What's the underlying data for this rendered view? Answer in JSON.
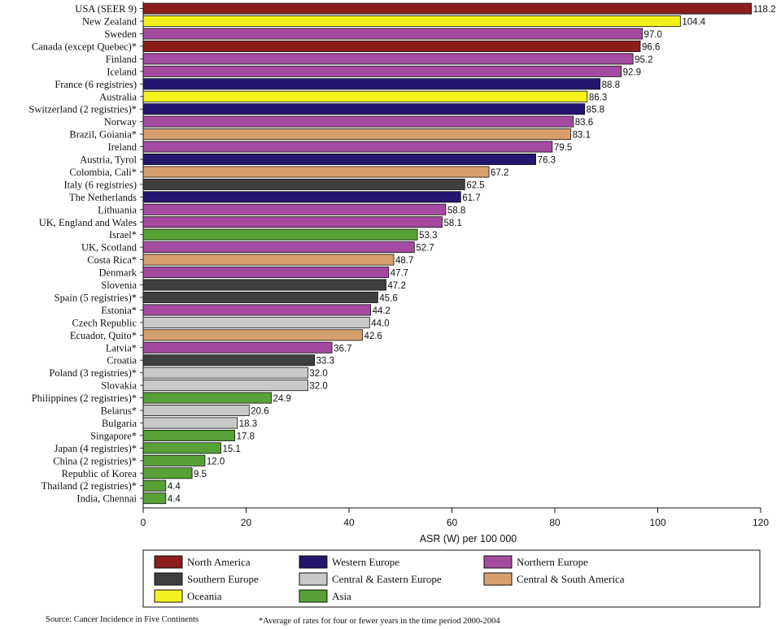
{
  "chart_data": {
    "type": "bar",
    "orientation": "horizontal",
    "categories": [
      "USA (SEER 9)",
      "New Zealand",
      "Sweden",
      "Canada (except Quebec)*",
      "Finland",
      "Iceland",
      "France (6 registries)",
      "Australia",
      "Switzerland (2 registries)*",
      "Norway",
      "Brazil, Goiania*",
      "Ireland",
      "Austria, Tyrol",
      "Colombia, Cali*",
      "Italy (6 registries)",
      "The Netherlands",
      "Lithuania",
      "UK, England and Wales",
      "Israel*",
      "UK, Scotland",
      "Costa Rica*",
      "Denmark",
      "Slovenia",
      "Spain (5 registries)*",
      "Estonia*",
      "Czech Republic",
      "Ecuador, Quito*",
      "Latvia*",
      "Croatia",
      "Poland (3 registries)*",
      "Slovakia",
      "Philippines (2 registries)*",
      "Belarus*",
      "Bulgaria",
      "Singapore*",
      "Japan (4 registries)*",
      "China (2 registries)*",
      "Republic of Korea",
      "Thailand (2 registries)*",
      "India, Chennai"
    ],
    "values": [
      118.2,
      104.4,
      97.0,
      96.6,
      95.2,
      92.9,
      88.8,
      86.3,
      85.8,
      83.6,
      83.1,
      79.5,
      76.3,
      67.2,
      62.5,
      61.7,
      58.8,
      58.1,
      53.3,
      52.7,
      48.7,
      47.7,
      47.2,
      45.6,
      44.2,
      44.0,
      42.6,
      36.7,
      33.3,
      32.0,
      32.0,
      24.9,
      20.6,
      18.3,
      17.8,
      15.1,
      12.0,
      9.5,
      4.4,
      4.4
    ],
    "value_labels": [
      "118.2",
      "104.4",
      "97.0",
      "96.6",
      "95.2",
      "92.9",
      "88.8",
      "86.3",
      "85.8",
      "83.6",
      "83.1",
      "79.5",
      "76.3",
      "67.2",
      "62.5",
      "61.7",
      "58.8",
      "58.1",
      "53.3",
      "52.7",
      "48.7",
      "47.7",
      "47.2",
      "45.6",
      "44.2",
      "44.0",
      "42.6",
      "36.7",
      "33.3",
      "32.0",
      "32.0",
      "24.9",
      "20.6",
      "18.3",
      "17.8",
      "15.1",
      "12.0",
      "9.5",
      "4.4",
      "4.4"
    ],
    "regions": [
      "na",
      "oc",
      "ne",
      "na",
      "ne",
      "ne",
      "we",
      "oc",
      "we",
      "ne",
      "csa",
      "ne",
      "we",
      "csa",
      "se",
      "we",
      "ne",
      "ne",
      "as",
      "ne",
      "csa",
      "ne",
      "se",
      "se",
      "ne",
      "cee",
      "csa",
      "ne",
      "se",
      "cee",
      "cee",
      "as",
      "cee",
      "cee",
      "as",
      "as",
      "as",
      "as",
      "as",
      "as"
    ],
    "xlabel": "ASR (W) per 100 000",
    "xlim": [
      0,
      120
    ],
    "xticks": [
      "0",
      "20",
      "40",
      "60",
      "80",
      "100",
      "120"
    ],
    "legend": {
      "placement": "bottom",
      "items": [
        {
          "key": "na",
          "label": "North America",
          "color": "#8b1d1d"
        },
        {
          "key": "we",
          "label": "Western Europe",
          "color": "#24166e"
        },
        {
          "key": "ne",
          "label": "Northern Europe",
          "color": "#a44aa0"
        },
        {
          "key": "se",
          "label": "Southern Europe",
          "color": "#3f3f3f"
        },
        {
          "key": "cee",
          "label": "Central & Eastern Europe",
          "color": "#c9c9c9"
        },
        {
          "key": "csa",
          "label": "Central & South America",
          "color": "#d6a06e"
        },
        {
          "key": "oc",
          "label": "Oceania",
          "color": "#f4f21e"
        },
        {
          "key": "as",
          "label": "Asia",
          "color": "#57a136"
        }
      ]
    },
    "grid": false
  },
  "notes": {
    "source": "Source: Cancer Incidence in Five Continents",
    "footnote": "*Average of rates for four or fewer years in the time period 2000-2004"
  }
}
